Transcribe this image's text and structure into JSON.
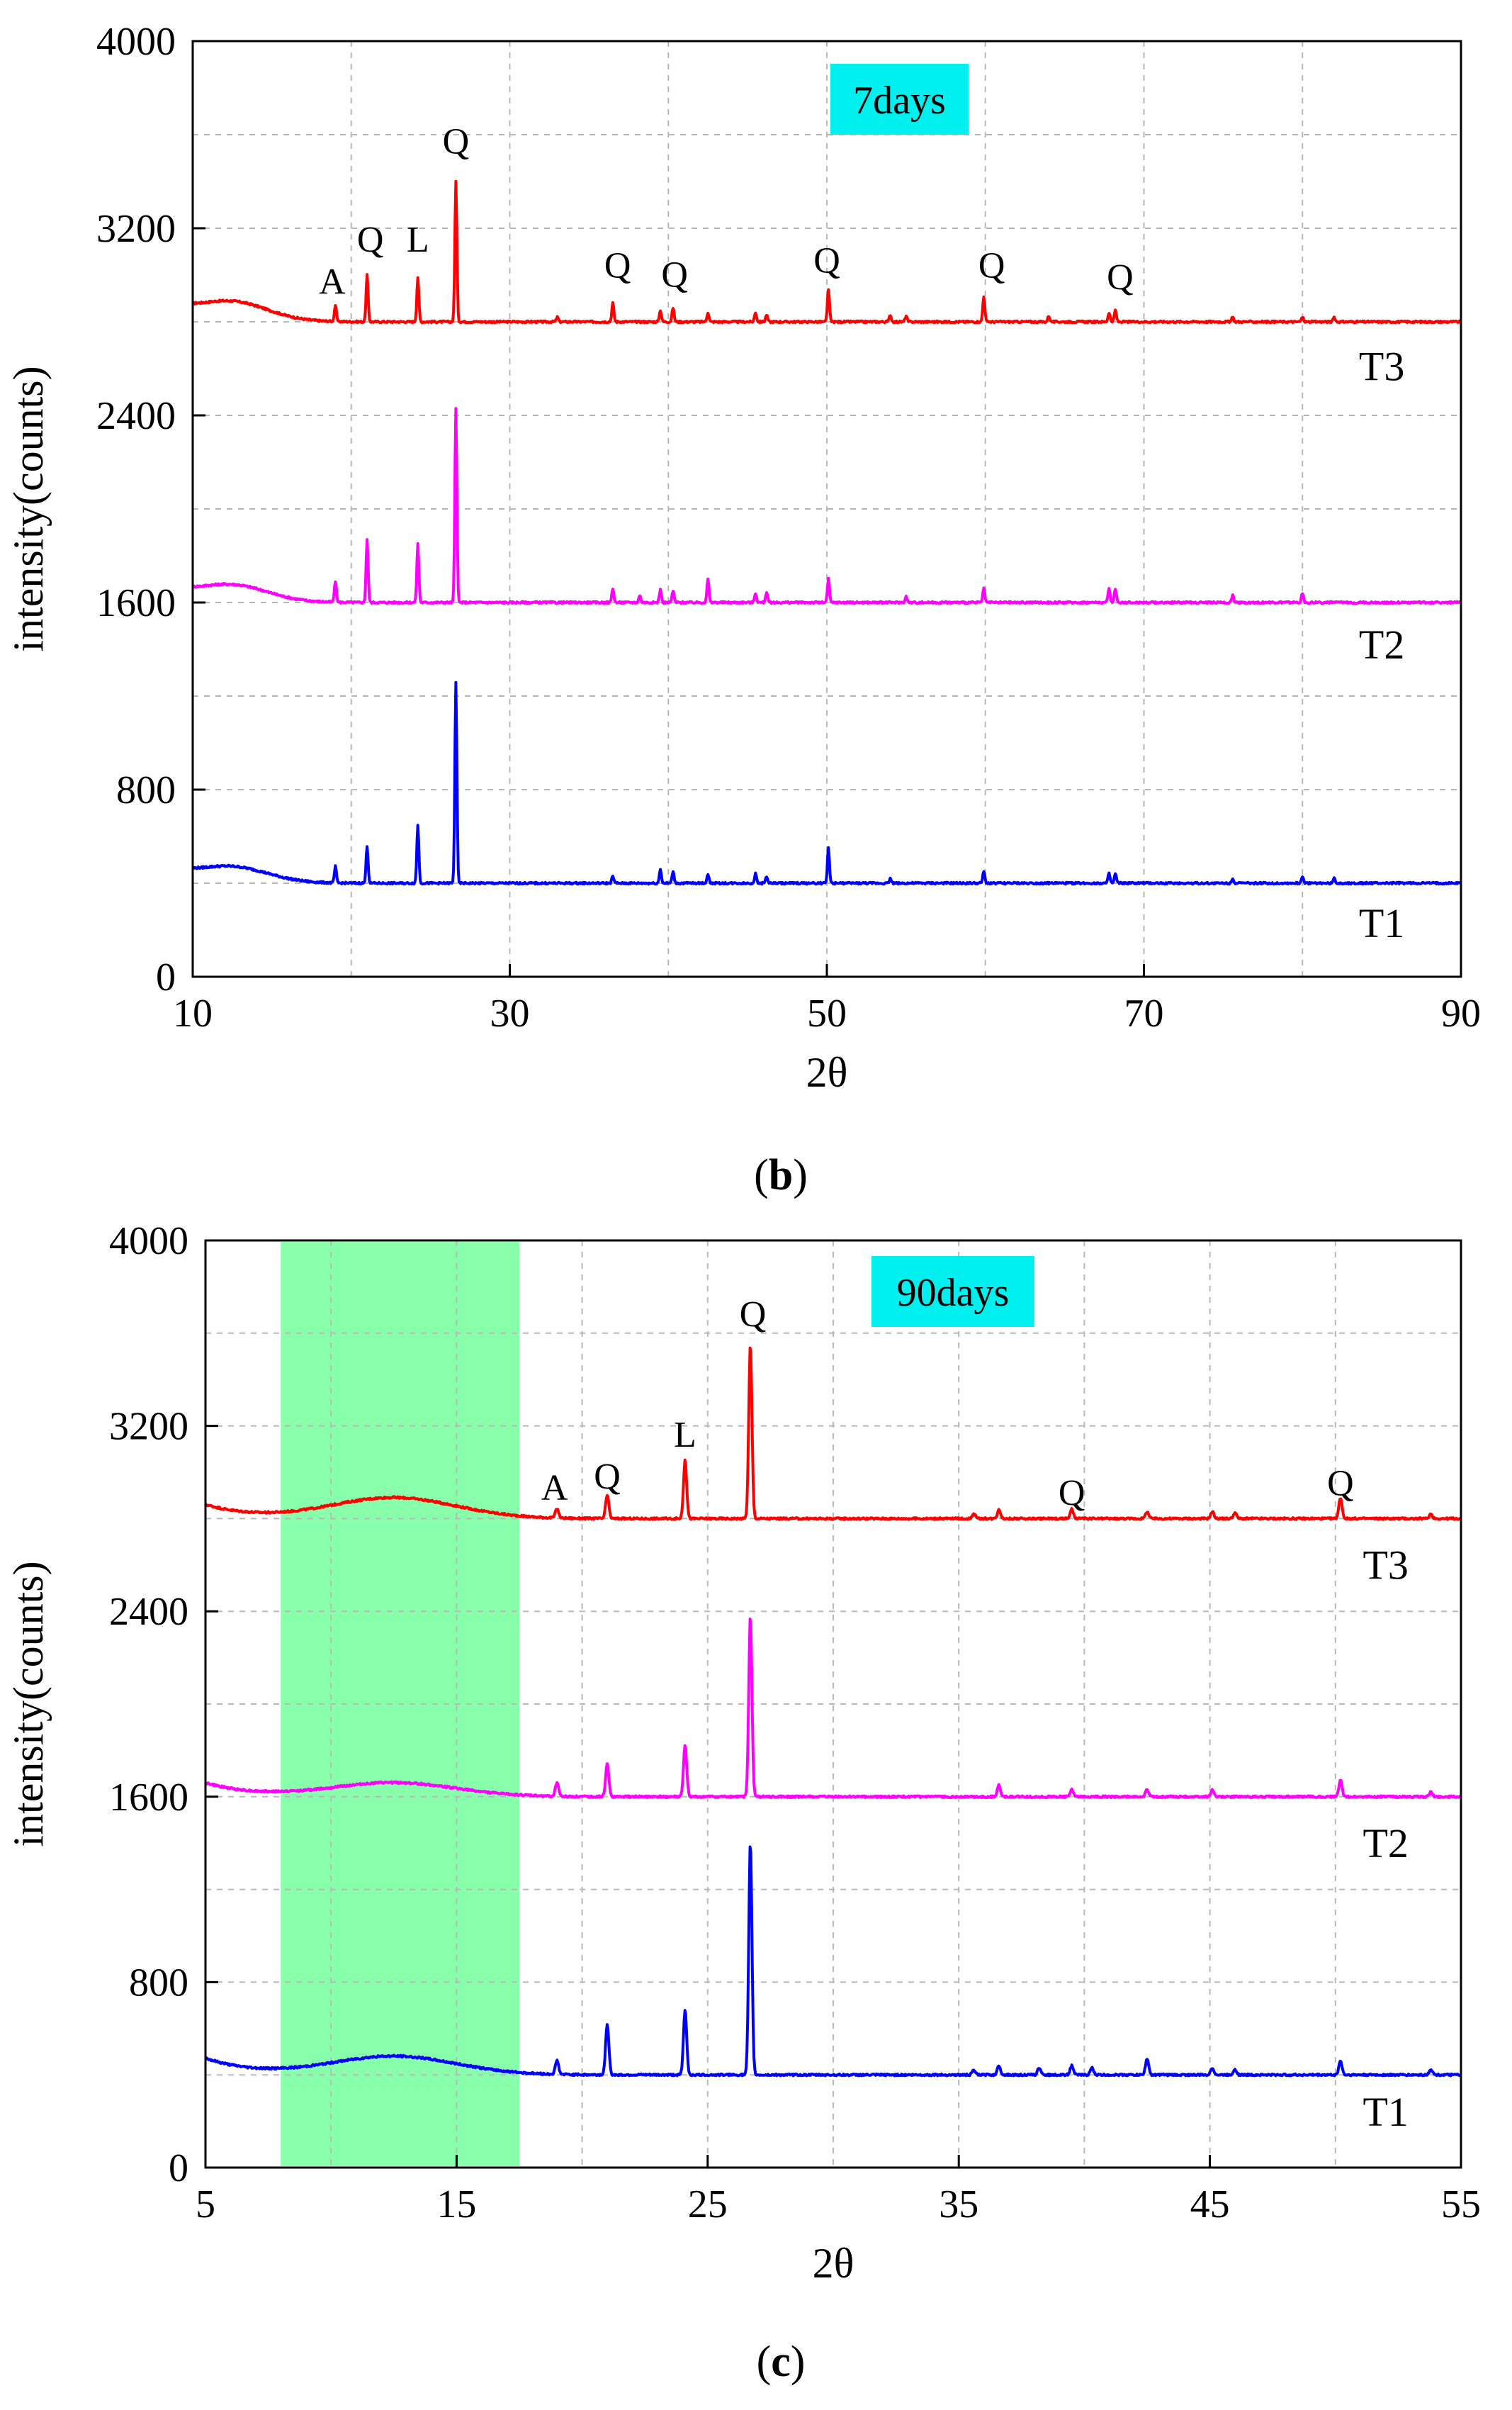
{
  "chart_data": [
    {
      "type": "line",
      "panel_label": "b",
      "title": "7days",
      "title_bg_color": "#00f0f0",
      "xlabel": "2θ",
      "ylabel": "intensity(counts)",
      "xlim": [
        10,
        90
      ],
      "ylim": [
        0,
        4000
      ],
      "xticks": [
        10,
        30,
        50,
        70,
        90
      ],
      "yticks": [
        0,
        800,
        1600,
        2400,
        3200,
        4000
      ],
      "grid": "dashed",
      "baseline_bump_center": 12.5,
      "baseline_bump_width": 3.2,
      "series": [
        {
          "name": "T3",
          "color": "#ff0000",
          "baseline": 2800,
          "start_value": 2860,
          "bump_height": 80,
          "peaks": [
            [
              19,
              70
            ],
            [
              21,
              200
            ],
            [
              24.2,
              190
            ],
            [
              26.6,
              600
            ],
            [
              33,
              20
            ],
            [
              36.5,
              80
            ],
            [
              39.5,
              50
            ],
            [
              40.3,
              60
            ],
            [
              42.5,
              40
            ],
            [
              45.5,
              40
            ],
            [
              46.2,
              30
            ],
            [
              50.1,
              140
            ],
            [
              54,
              30
            ],
            [
              55,
              25
            ],
            [
              59.9,
              110
            ],
            [
              64,
              25
            ],
            [
              67.8,
              40
            ],
            [
              68.2,
              50
            ],
            [
              75.6,
              20
            ],
            [
              80,
              20
            ],
            [
              82,
              20
            ]
          ]
        },
        {
          "name": "T2",
          "color": "#ff00ff",
          "baseline": 1600,
          "start_value": 1650,
          "bump_height": 70,
          "peaks": [
            [
              19,
              90
            ],
            [
              21,
              270
            ],
            [
              24.2,
              250
            ],
            [
              26.6,
              830
            ],
            [
              36.5,
              60
            ],
            [
              38.2,
              30
            ],
            [
              39.5,
              55
            ],
            [
              40.3,
              50
            ],
            [
              42.5,
              100
            ],
            [
              45.5,
              40
            ],
            [
              46.2,
              45
            ],
            [
              50.1,
              100
            ],
            [
              55,
              25
            ],
            [
              59.9,
              60
            ],
            [
              67.8,
              60
            ],
            [
              68.2,
              60
            ],
            [
              75.6,
              30
            ],
            [
              80,
              40
            ]
          ]
        },
        {
          "name": "T1",
          "color": "#0000ff",
          "baseline": 400,
          "start_value": 450,
          "bump_height": 65,
          "peaks": [
            [
              19,
              70
            ],
            [
              21,
              160
            ],
            [
              24.2,
              250
            ],
            [
              26.6,
              860
            ],
            [
              36.5,
              30
            ],
            [
              39.5,
              60
            ],
            [
              40.3,
              50
            ],
            [
              42.5,
              40
            ],
            [
              45.5,
              40
            ],
            [
              46.2,
              30
            ],
            [
              50.1,
              150
            ],
            [
              54,
              20
            ],
            [
              59.9,
              50
            ],
            [
              67.8,
              40
            ],
            [
              68.2,
              40
            ],
            [
              75.6,
              20
            ],
            [
              80,
              30
            ],
            [
              82,
              20
            ]
          ]
        }
      ],
      "annotations": [
        {
          "text": "A",
          "x": 18.8,
          "y": 2920
        },
        {
          "text": "Q",
          "x": 21.2,
          "y": 3100
        },
        {
          "text": "L",
          "x": 24.2,
          "y": 3100
        },
        {
          "text": "Q",
          "x": 26.6,
          "y": 3520
        },
        {
          "text": "Q",
          "x": 36.8,
          "y": 2990
        },
        {
          "text": "Q",
          "x": 40.4,
          "y": 2950
        },
        {
          "text": "Q",
          "x": 50.0,
          "y": 3010
        },
        {
          "text": "Q",
          "x": 60.4,
          "y": 2990
        },
        {
          "text": "Q",
          "x": 68.5,
          "y": 2940
        }
      ],
      "series_label_positions": [
        {
          "name": "T3",
          "x": 85,
          "y": 2550
        },
        {
          "name": "T2",
          "x": 85,
          "y": 1360
        },
        {
          "name": "T1",
          "x": 85,
          "y": 170
        }
      ]
    },
    {
      "type": "line",
      "panel_label": "c",
      "title": "90days",
      "title_bg_color": "#00f0f0",
      "highlight_region": {
        "x0": 8,
        "x1": 17.5,
        "color": "#88ffaa"
      },
      "xlabel": "2θ",
      "ylabel": "intensity(counts)",
      "xlim": [
        5,
        55
      ],
      "ylim": [
        0,
        4000
      ],
      "xticks": [
        5,
        15,
        25,
        35,
        45,
        55
      ],
      "yticks": [
        0,
        800,
        1600,
        2400,
        3200,
        4000
      ],
      "grid": "dashed",
      "baseline_bump_center": 12.5,
      "baseline_bump_width": 3.5,
      "series": [
        {
          "name": "T3",
          "color": "#ff0000",
          "baseline": 2800,
          "start_value": 2900,
          "bump_height": 90,
          "peaks": [
            [
              19,
              40
            ],
            [
              21,
              100
            ],
            [
              24.1,
              250
            ],
            [
              26.7,
              750
            ],
            [
              35.6,
              20
            ],
            [
              36.6,
              40
            ],
            [
              39.5,
              40
            ],
            [
              42.5,
              30
            ],
            [
              45.1,
              30
            ],
            [
              46.0,
              25
            ],
            [
              50.2,
              90
            ],
            [
              53.8,
              20
            ]
          ]
        },
        {
          "name": "T2",
          "color": "#ff00ff",
          "baseline": 1600,
          "start_value": 1700,
          "bump_height": 60,
          "peaks": [
            [
              19,
              60
            ],
            [
              21,
              140
            ],
            [
              24.1,
              220
            ],
            [
              26.7,
              780
            ],
            [
              36.6,
              50
            ],
            [
              39.5,
              30
            ],
            [
              42.5,
              30
            ],
            [
              45.1,
              30
            ],
            [
              50.2,
              70
            ],
            [
              53.8,
              20
            ]
          ]
        },
        {
          "name": "T1",
          "color": "#0000ff",
          "baseline": 400,
          "start_value": 520,
          "bump_height": 80,
          "peaks": [
            [
              19,
              60
            ],
            [
              21,
              220
            ],
            [
              24.1,
              280
            ],
            [
              26.7,
              1000
            ],
            [
              35.6,
              20
            ],
            [
              36.6,
              40
            ],
            [
              38.2,
              30
            ],
            [
              39.5,
              40
            ],
            [
              40.3,
              30
            ],
            [
              42.5,
              70
            ],
            [
              45.1,
              30
            ],
            [
              46.0,
              25
            ],
            [
              50.2,
              60
            ],
            [
              53.8,
              25
            ]
          ]
        }
      ],
      "annotations": [
        {
          "text": "A",
          "x": 18.9,
          "y": 2880
        },
        {
          "text": "Q",
          "x": 21.0,
          "y": 2930
        },
        {
          "text": "L",
          "x": 24.1,
          "y": 3110
        },
        {
          "text": "Q",
          "x": 26.8,
          "y": 3630
        },
        {
          "text": "Q",
          "x": 39.5,
          "y": 2860
        },
        {
          "text": "Q",
          "x": 50.2,
          "y": 2900
        }
      ],
      "series_label_positions": [
        {
          "name": "T3",
          "x": 52,
          "y": 2540
        },
        {
          "name": "T2",
          "x": 52,
          "y": 1340
        },
        {
          "name": "T1",
          "x": 52,
          "y": 180
        }
      ]
    }
  ]
}
